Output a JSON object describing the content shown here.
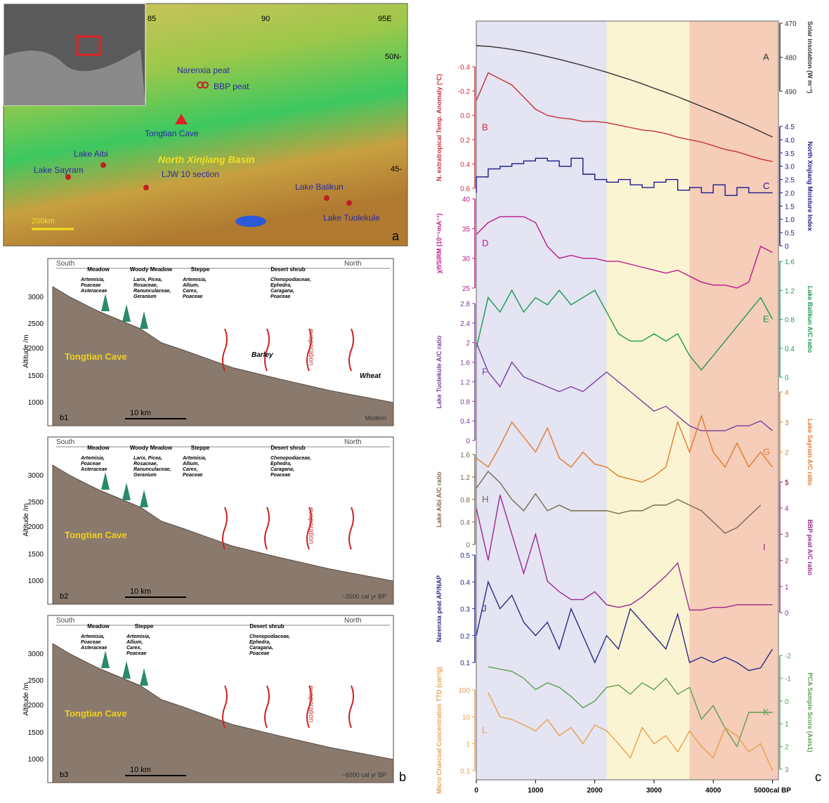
{
  "map": {
    "panel": "a",
    "lon_labels": [
      "85",
      "90",
      "95E"
    ],
    "lat_labels": [
      "50N-",
      "45-"
    ],
    "sites": [
      "Narenxia peat",
      "BBP peat",
      "Tongtian Cave",
      "Lake Aibi",
      "Lake Sayram",
      "LJW 10 section",
      "Lake Balikun",
      "Lake Tuolekule"
    ],
    "basin": "North Xinjiang Basin",
    "scale": "200km"
  },
  "profiles": {
    "panel": "b",
    "altitude_label": "Altitude /m",
    "altitude_ticks": [
      "3000",
      "2500",
      "2000",
      "1500",
      "1000"
    ],
    "items": [
      {
        "id": "b1",
        "south": "South",
        "north": "North",
        "age": "Modern",
        "scale": "10 km",
        "cave": "Tongtian Cave",
        "evaporation": "evaporation",
        "crops": [
          "Barley",
          "Wheat"
        ],
        "zones": [
          {
            "name": "Meadow",
            "taxa": [
              "Artemisia,",
              "Poaceae",
              "Asteraceae"
            ]
          },
          {
            "name": "Woody Meadow",
            "taxa": [
              "Larix, Picea,",
              "Rosaceae,",
              "Ranunculaceae,",
              "Geranium"
            ]
          },
          {
            "name": "Steppe",
            "taxa": [
              "Artemisia,",
              "Allium,",
              "Carex,",
              "Poaceae"
            ]
          },
          {
            "name": "Desert shrub",
            "taxa": [
              "Chenopodiaceae,",
              "Ephedra,",
              "Caragana,",
              "Poaceae"
            ]
          }
        ]
      },
      {
        "id": "b2",
        "south": "South",
        "north": "North",
        "age": "~3500 cal yr BP",
        "scale": "10 km",
        "cave": "Tongtian Cave",
        "evaporation": "evaporation",
        "crops": [],
        "zones": [
          {
            "name": "Meadow",
            "taxa": [
              "Artemisia,",
              "Poaceae",
              "Asteraceae"
            ]
          },
          {
            "name": "Woody Meadow",
            "taxa": [
              "Larix, Picea,",
              "Rosaceae,",
              "Ranunculaceae,",
              "Geranium"
            ]
          },
          {
            "name": "Steppe",
            "taxa": [
              "Artemisia,",
              "Allium,",
              "Carex,",
              "Poaceae"
            ]
          },
          {
            "name": "Desert shrub",
            "taxa": [
              "Chenopodiaceae,",
              "Ephedra,",
              "Caragana,",
              "Poaceae"
            ]
          }
        ]
      },
      {
        "id": "b3",
        "south": "South",
        "north": "North",
        "age": "~6000 cal yr BP",
        "scale": "10 km",
        "cave": "Tongtian Cave",
        "evaporation": "evaporation",
        "crops": [],
        "zones": [
          {
            "name": "Meadow",
            "taxa": [
              "Artemisia,",
              "Poaceae",
              "Asteraceae"
            ]
          },
          {
            "name": "Steppe",
            "taxa": [
              "Artemisia,",
              "Allium,",
              "Carex,",
              "Poaceae"
            ]
          },
          {
            "name": "Desert shrub",
            "taxa": [
              "Chenopodiaceae,",
              "Ephedra,",
              "Caragana,",
              "Poaceae"
            ]
          }
        ]
      }
    ]
  },
  "chart_data": {
    "type": "line",
    "panel": "c",
    "x": [
      0,
      200,
      400,
      600,
      800,
      1000,
      1200,
      1400,
      1600,
      1800,
      2000,
      2200,
      2400,
      2600,
      2800,
      3000,
      3200,
      3400,
      3600,
      3800,
      4000,
      4200,
      4400,
      4600,
      4800,
      5000
    ],
    "xlim": [
      0,
      5100
    ],
    "xticks": [
      0,
      1000,
      2000,
      3000,
      4000,
      {
        "value": 5000,
        "label": "5000cal BP"
      }
    ],
    "periods": [
      {
        "start": 0,
        "end": 2200,
        "color": "#e4e4f2"
      },
      {
        "start": 2200,
        "end": 3600,
        "color": "#fbf4d2"
      },
      {
        "start": 3600,
        "end": 5100,
        "color": "#f5cdb8"
      }
    ],
    "series": [
      {
        "name": "A",
        "label": "Solar insolation (W m⁻²)",
        "axis": "y2",
        "color": "#333333",
        "ylim": [
          470,
          490
        ],
        "yticks": [
          470,
          480,
          490
        ],
        "values": [
          476.6,
          476.8,
          477.2,
          477.7,
          478.3,
          479.0,
          479.8,
          480.6,
          481.5,
          482.4,
          483.4,
          484.4,
          485.5,
          486.6,
          487.8,
          489.1,
          490.3,
          491.6,
          493.0,
          494.4,
          495.8,
          497.2,
          498.7,
          500.2,
          501.8,
          503.4
        ]
      },
      {
        "name": "B",
        "label": "N. extratropical Temp. Anomaly (°C)",
        "color": "#c8303a",
        "ylim": [
          -0.4,
          0.6
        ],
        "yticks": [
          -0.4,
          -0.2,
          {
            "value": 0,
            "label": "0.0"
          },
          0.2,
          0.4,
          0.6
        ],
        "values": [
          -0.12,
          -0.35,
          -0.3,
          -0.25,
          -0.15,
          -0.05,
          0.0,
          0.02,
          0.03,
          0.05,
          0.05,
          0.06,
          0.08,
          0.1,
          0.12,
          0.13,
          0.15,
          0.18,
          0.2,
          0.22,
          0.25,
          0.28,
          0.3,
          0.33,
          0.36,
          0.38
        ]
      },
      {
        "name": "C",
        "label": "North Xinjiang Moisture Index",
        "axis": "y2",
        "step": true,
        "color": "#1a1a8c",
        "ylim": [
          0,
          4.5
        ],
        "yticks": [
          0,
          0.5,
          {
            "value": 1,
            "label": "1.0"
          },
          1.5,
          {
            "value": 2,
            "label": "2.0"
          },
          2.5,
          {
            "value": 3,
            "label": "3.0"
          },
          3.5,
          {
            "value": 4,
            "label": "4.0"
          },
          4.5
        ],
        "values": [
          2.0,
          2.6,
          2.9,
          3.0,
          3.1,
          3.2,
          3.3,
          3.2,
          3.0,
          3.3,
          2.7,
          2.5,
          2.4,
          2.5,
          2.3,
          2.2,
          2.4,
          2.5,
          2.1,
          2.2,
          2.0,
          2.3,
          1.9,
          2.2,
          2.0,
          2.0
        ]
      },
      {
        "name": "D",
        "label": "χlf/SIRM (10⁻⁵mA⁻¹)",
        "color": "#c0178c",
        "ylim": [
          25,
          40
        ],
        "yticks": [
          25,
          30,
          35,
          40
        ],
        "values": [
          34,
          36,
          37,
          37,
          37,
          36,
          32,
          30,
          30.5,
          30,
          30,
          29.5,
          29.5,
          29,
          28.5,
          28,
          27.5,
          28,
          27,
          26,
          25.5,
          25.5,
          25,
          26,
          32,
          31
        ]
      },
      {
        "name": "E",
        "label": "Lake Balikun A/C ratio",
        "axis": "y2",
        "color": "#1a9a50",
        "ylim": [
          0,
          1.6
        ],
        "yticks": [
          0,
          0.4,
          0.8,
          1.2,
          1.6
        ],
        "values": [
          0.4,
          1.1,
          0.9,
          1.2,
          0.9,
          1.1,
          1.0,
          1.2,
          1.0,
          1.1,
          1.2,
          0.9,
          0.6,
          0.5,
          0.5,
          0.6,
          0.5,
          0.6,
          0.3,
          0.1,
          0.3,
          0.5,
          0.7,
          0.9,
          1.1,
          0.8
        ]
      },
      {
        "name": "F",
        "label": "Lake Tuolekule A/C ratio",
        "color": "#7b3fa0",
        "ylim": [
          0,
          2.8
        ],
        "yticks": [
          0,
          0.4,
          0.8,
          1.2,
          1.6,
          2,
          2.4,
          2.8
        ],
        "values": [
          2.0,
          1.4,
          1.1,
          1.6,
          1.3,
          1.2,
          1.1,
          1.0,
          1.1,
          1.0,
          1.2,
          1.4,
          1.2,
          1.0,
          0.8,
          0.6,
          0.7,
          0.5,
          0.3,
          0.2,
          0.2,
          0.2,
          0.3,
          0.3,
          0.4,
          0.2
        ]
      },
      {
        "name": "G",
        "label": "Lake Sayram A/C ratio",
        "axis": "y2",
        "color": "#e07a30",
        "ylim": [
          0,
          4
        ],
        "yticks": [
          1,
          2,
          3,
          4
        ],
        "values": [
          1.8,
          1.5,
          2.2,
          3.0,
          2.5,
          2.0,
          2.8,
          1.8,
          1.5,
          2.0,
          1.6,
          1.5,
          1.2,
          1.1,
          1.0,
          1.2,
          1.5,
          3.0,
          2.0,
          3.2,
          2.0,
          1.5,
          2.3,
          1.5,
          2.0,
          1.5
        ]
      },
      {
        "name": "H",
        "label": "Lake Aibi A/C ratio",
        "color": "#7a6a50",
        "ylim": [
          0,
          1.6
        ],
        "yticks": [
          0,
          0.4,
          0.8,
          1.2,
          1.6
        ],
        "values": [
          1.0,
          1.3,
          1.1,
          0.8,
          0.6,
          0.9,
          0.6,
          0.7,
          0.6,
          0.6,
          0.6,
          0.6,
          0.55,
          0.6,
          0.6,
          0.7,
          0.7,
          0.8,
          0.7,
          0.6,
          0.4,
          0.2,
          0.3,
          0.5,
          0.7,
          null
        ]
      },
      {
        "name": "I",
        "label": "BBP peat A/C ratio",
        "axis": "y2",
        "color": "#9a2a8a",
        "ylim": [
          0,
          5
        ],
        "yticks": [
          0,
          1,
          2,
          3,
          4,
          5
        ],
        "values": [
          4.0,
          2.0,
          4.5,
          3.0,
          1.5,
          3.0,
          1.2,
          0.8,
          0.5,
          0.5,
          0.8,
          0.3,
          0.2,
          0.3,
          0.6,
          1.0,
          1.4,
          1.9,
          0.1,
          0.1,
          0.2,
          0.2,
          0.3,
          0.3,
          0.3,
          0.3
        ]
      },
      {
        "name": "J",
        "label": "Narenxia peat AP/NAP",
        "color": "#2a2a8a",
        "ylim": [
          0.1,
          0.5
        ],
        "yticks": [
          0.1,
          0.2,
          0.3,
          0.4,
          0.5
        ],
        "values": [
          0.2,
          0.4,
          0.3,
          0.35,
          0.25,
          0.2,
          0.25,
          0.15,
          0.3,
          0.2,
          0.1,
          0.2,
          0.15,
          0.3,
          0.25,
          0.2,
          0.15,
          0.28,
          0.1,
          0.12,
          0.1,
          0.12,
          0.1,
          0.07,
          0.08,
          0.15
        ]
      },
      {
        "name": "K",
        "label": "PCA Sample Score (Axis1)",
        "axis": "y2",
        "color": "#5aa050",
        "ylim": [
          -2,
          3
        ],
        "yticks": [
          -2,
          -1,
          0,
          1,
          2,
          3
        ],
        "values": [
          null,
          -1.5,
          -1.4,
          -1.3,
          -1.0,
          -0.5,
          -0.8,
          -0.6,
          -0.2,
          0.3,
          0.0,
          -0.6,
          -0.7,
          -0.3,
          -0.8,
          -0.5,
          -1.0,
          -0.3,
          -0.6,
          0.8,
          0.2,
          1.2,
          2.0,
          0.5,
          0.5,
          0.5
        ]
      },
      {
        "name": "L",
        "label": "Micro Charcoal Concentration TTD (cm²/g)",
        "log": true,
        "color": "#e8a050",
        "ylim": [
          0.1,
          100
        ],
        "yticks": [
          0.1,
          1,
          10,
          100
        ],
        "values": [
          null,
          80,
          10,
          8,
          5,
          3,
          8,
          2,
          4,
          1,
          5,
          3,
          1,
          0.3,
          4,
          1,
          2,
          0.5,
          3,
          0.8,
          0.3,
          4,
          2,
          0.5,
          1,
          0.1
        ]
      }
    ]
  }
}
